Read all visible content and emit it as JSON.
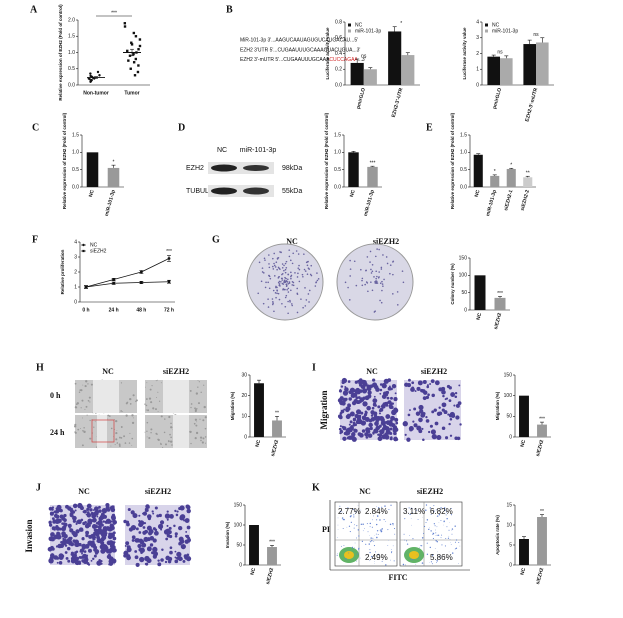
{
  "panel_labels": [
    "A",
    "B",
    "C",
    "D",
    "E",
    "F",
    "G",
    "H",
    "I",
    "J",
    "K"
  ],
  "sequences": [
    "MiR-101-3p 3'...AAGUCAAUAGUGUCAUGACAU...5'",
    "EZH2 3'UTR 5'...CUGAAUUUGCAAAGUACUGUA...3'"
  ],
  "mutant": [
    "EZH2 3'-mUTR 5'...CUGAAUUUGCAAA",
    "CUCCAGAA",
    "...3'"
  ],
  "blot": {
    "lanes": [
      "NC",
      "miR-101-3p"
    ],
    "bands": [
      {
        "name": "EZH2",
        "size": "98kDa"
      },
      {
        "name": "TUBULIN",
        "size": "55kDa"
      }
    ]
  },
  "images": {
    "G": {
      "columns": [
        "NC",
        "siEZH2"
      ]
    },
    "H": {
      "columns": [
        "NC",
        "siEZH2"
      ],
      "rows": [
        "0 h",
        "24 h"
      ]
    },
    "I": {
      "columns": [
        "NC",
        "siEZH2"
      ],
      "row": "Migration"
    },
    "J": {
      "columns": [
        "NC",
        "siEZH2"
      ],
      "row": "Invasion"
    },
    "K": {
      "columns": [
        "NC",
        "siEZH2"
      ],
      "quadrants": [
        [
          "2.77%",
          "2.84%",
          "2.49%"
        ],
        [
          "3.11%",
          "6.82%",
          "5.86%"
        ]
      ],
      "y_axis": "PI",
      "x_axis": "FITC"
    }
  },
  "chart_data": [
    {
      "type": "scatter",
      "ylabel": "Relative expression of EZH2 (Fold of control)",
      "categories": [
        "Non-tumor",
        "Tumor"
      ],
      "points": [
        [
          0.15,
          0.2,
          0.25,
          0.3,
          0.1,
          0.35,
          0.2,
          0.28,
          0.4,
          0.18,
          0.22,
          0.12
        ],
        [
          0.3,
          0.5,
          0.7,
          0.8,
          0.9,
          1.0,
          1.1,
          1.2,
          1.3,
          1.5,
          1.6,
          1.8,
          1.9,
          0.6,
          0.75,
          1.05,
          1.25,
          0.4,
          0.95,
          1.4
        ]
      ],
      "means": [
        0.23,
        1.0
      ],
      "errors": [
        0.03,
        0.1
      ],
      "ylim": [
        0,
        2
      ],
      "yticks": [
        {
          "value": 0,
          "label": "0.0"
        },
        {
          "value": 0.5,
          "label": "0.5"
        },
        {
          "value": 1,
          "label": "1.0"
        },
        {
          "value": 1.5,
          "label": "1.5"
        },
        {
          "value": 2,
          "label": "2.0"
        }
      ],
      "annotation": "***"
    },
    {
      "type": "bar",
      "ylabel": "Luciferase activity value",
      "categories": [
        "pmirGLO",
        "EZH2-3'-UTR"
      ],
      "series": [
        {
          "name": "NC",
          "color": "#111111",
          "values": [
            0.28,
            0.68
          ],
          "errors": [
            0.05,
            0.06
          ]
        },
        {
          "name": "miR-101-3p",
          "color": "#aaaaaa",
          "values": [
            0.2,
            0.38
          ],
          "errors": [
            0.02,
            0.03
          ]
        }
      ],
      "annotations": [
        "ns",
        "*"
      ],
      "ylim": [
        0,
        0.8
      ],
      "yticks": [
        {
          "value": 0,
          "label": "0.0"
        },
        {
          "value": 0.2,
          "label": "0.2"
        },
        {
          "value": 0.4,
          "label": "0.4"
        },
        {
          "value": 0.6,
          "label": "0.6"
        },
        {
          "value": 0.8,
          "label": "0.8"
        }
      ]
    },
    {
      "type": "bar",
      "ylabel": "Luciferase activity value",
      "categories": [
        "pmirGLO",
        "EZH2-3'-mUTR"
      ],
      "series": [
        {
          "name": "NC",
          "color": "#111111",
          "values": [
            1.8,
            2.6
          ],
          "errors": [
            0.1,
            0.25
          ]
        },
        {
          "name": "miR-101-3p",
          "color": "#aaaaaa",
          "values": [
            1.7,
            2.7
          ],
          "errors": [
            0.15,
            0.3
          ]
        }
      ],
      "annotations": [
        "ns",
        "ns"
      ],
      "ylim": [
        0,
        4
      ],
      "yticks": [
        0,
        1,
        2,
        3,
        4
      ]
    },
    {
      "type": "bar",
      "ylabel": "Relative expression of EZH2 (Fold of control)",
      "categories": [
        "NC",
        "miR-101-3p"
      ],
      "values": [
        1,
        0.55
      ],
      "errors": [
        0,
        0.08
      ],
      "colors": [
        "#111111",
        "#999999"
      ],
      "annotations": [
        null,
        "*"
      ],
      "ylim": [
        0,
        1.5
      ],
      "yticks": [
        {
          "value": 0,
          "label": "0.0"
        },
        {
          "value": 0.5,
          "label": "0.5"
        },
        {
          "value": 1,
          "label": "1.0"
        },
        {
          "value": 1.5,
          "label": "1.5"
        }
      ]
    },
    {
      "type": "bar",
      "ylabel": "Relative expression of EZH2 (Fold of control)",
      "categories": [
        "NC",
        "miR-101-3p"
      ],
      "values": [
        1,
        0.58
      ],
      "errors": [
        0.03,
        0.02
      ],
      "colors": [
        "#111111",
        "#999999"
      ],
      "annotations": [
        null,
        "***"
      ],
      "ylim": [
        0,
        1.5
      ],
      "yticks": [
        {
          "value": 0,
          "label": "0.0"
        },
        {
          "value": 0.5,
          "label": "0.5"
        },
        {
          "value": 1,
          "label": "1.0"
        },
        {
          "value": 1.5,
          "label": "1.5"
        }
      ]
    },
    {
      "type": "bar",
      "ylabel": "Relative expression of EZH2 (Fold of control)",
      "categories": [
        "NC",
        "miR-101-3p",
        "siEZH2-1",
        "siEZH2-2"
      ],
      "values": [
        0.93,
        0.32,
        0.52,
        0.28
      ],
      "errors": [
        0.03,
        0.03,
        0.02,
        0.03
      ],
      "colors": [
        "#111111",
        "#999999",
        "#999999",
        "#cccccc"
      ],
      "annotations": [
        null,
        "*",
        "*",
        "**"
      ],
      "ylim": [
        0,
        1.5
      ],
      "yticks": [
        {
          "value": 0,
          "label": "0.0"
        },
        {
          "value": 0.5,
          "label": "0.5"
        },
        {
          "value": 1,
          "label": "1.0"
        },
        {
          "value": 1.5,
          "label": "1.5"
        }
      ]
    },
    {
      "type": "line",
      "ylabel": "Relative proliferation",
      "categories": [
        "0 h",
        "24 h",
        "48 h",
        "72 h"
      ],
      "series": [
        {
          "name": "NC",
          "color": "#111111",
          "marker": "circle",
          "values": [
            1,
            1.5,
            2,
            2.9
          ],
          "errors": [
            0.1,
            0.08,
            0.1,
            0.2
          ]
        },
        {
          "name": "siEZH2",
          "color": "#111111",
          "marker": "square",
          "values": [
            1,
            1.25,
            1.3,
            1.35
          ],
          "errors": [
            0.08,
            0.08,
            0.08,
            0.1
          ]
        }
      ],
      "annotation": "***",
      "ylim": [
        0,
        4
      ],
      "yticks": [
        0,
        1,
        2,
        3,
        4
      ]
    },
    {
      "type": "bar",
      "ylabel": "Colony number (%)",
      "categories": [
        "NC",
        "siEZH2"
      ],
      "values": [
        100,
        35
      ],
      "errors": [
        0,
        4
      ],
      "colors": [
        "#111111",
        "#999999"
      ],
      "annotations": [
        null,
        "***"
      ],
      "ylim": [
        0,
        150
      ],
      "yticks": [
        0,
        50,
        100,
        150
      ]
    },
    {
      "type": "bar",
      "ylabel": "Migration (%)",
      "categories": [
        "NC",
        "siEZH2"
      ],
      "values": [
        26,
        8
      ],
      "errors": [
        1.5,
        2
      ],
      "colors": [
        "#111111",
        "#999999"
      ],
      "annotations": [
        null,
        "**"
      ],
      "ylim": [
        0,
        30
      ],
      "yticks": [
        0,
        10,
        20,
        30
      ]
    },
    {
      "type": "bar",
      "ylabel": "Migration (%)",
      "categories": [
        "NC",
        "siEZH2"
      ],
      "values": [
        100,
        30
      ],
      "errors": [
        0,
        6
      ],
      "colors": [
        "#111111",
        "#999999"
      ],
      "annotations": [
        null,
        "***"
      ],
      "ylim": [
        0,
        150
      ],
      "yticks": [
        0,
        50,
        100,
        150
      ]
    },
    {
      "type": "bar",
      "ylabel": "Invasion (%)",
      "categories": [
        "NC",
        "siEZH2"
      ],
      "values": [
        100,
        45
      ],
      "errors": [
        0,
        4
      ],
      "colors": [
        "#111111",
        "#999999"
      ],
      "annotations": [
        null,
        "***"
      ],
      "ylim": [
        0,
        150
      ],
      "yticks": [
        0,
        50,
        100,
        150
      ]
    },
    {
      "type": "bar",
      "ylabel": "Apoptosis rate (%)",
      "categories": [
        "NC",
        "siEZH2"
      ],
      "values": [
        6.5,
        12
      ],
      "errors": [
        0.6,
        0.6
      ],
      "colors": [
        "#111111",
        "#999999"
      ],
      "annotations": [
        null,
        "**"
      ],
      "ylim": [
        0,
        15
      ],
      "yticks": [
        0,
        5,
        10,
        15
      ]
    }
  ]
}
